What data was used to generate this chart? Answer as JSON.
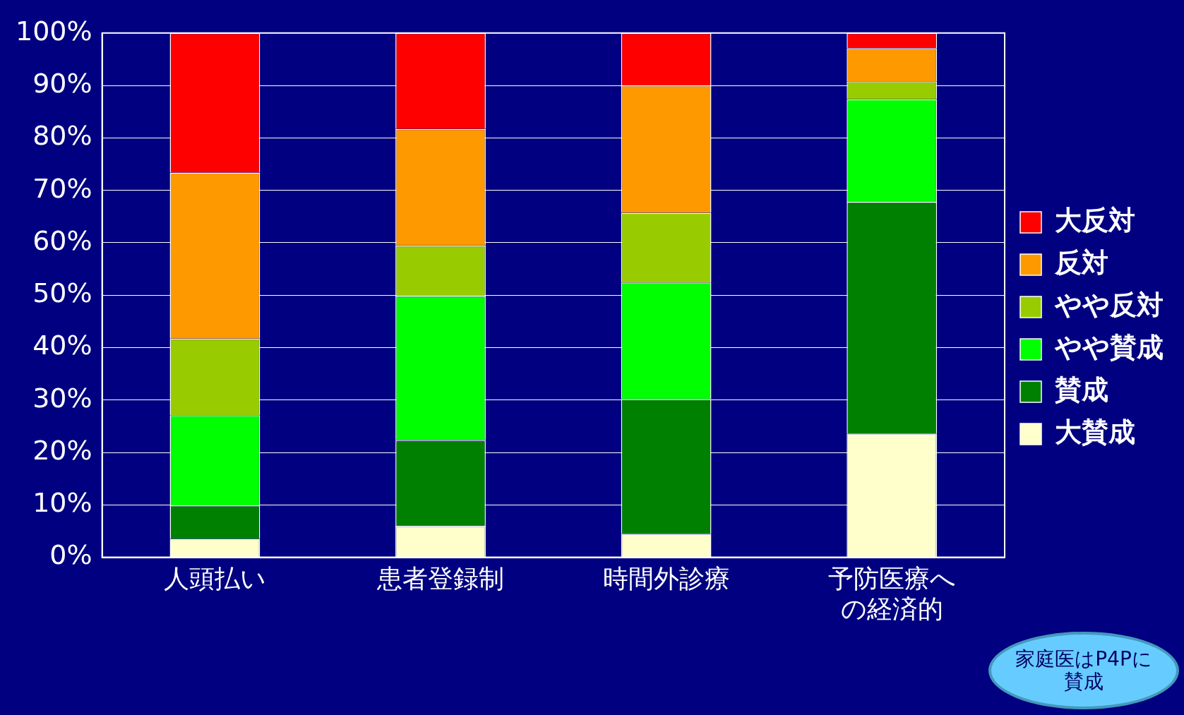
{
  "chart_data": {
    "type": "bar",
    "stacked": true,
    "categories": [
      "人頭払い",
      "患者登録制",
      "時間外診療",
      "予防医療への経済的"
    ],
    "series": [
      {
        "name": "大賛成",
        "color": "#ffffcc",
        "values": [
          3.5,
          6.0,
          4.5,
          23.6
        ]
      },
      {
        "name": "賛成",
        "color": "#008000",
        "values": [
          6.4,
          16.4,
          25.7,
          44.2
        ]
      },
      {
        "name": "やや賛成",
        "color": "#00ff00",
        "values": [
          17.2,
          27.5,
          22.2,
          19.6
        ]
      },
      {
        "name": "やや反対",
        "color": "#99cc00",
        "values": [
          14.6,
          9.6,
          13.3,
          3.4
        ]
      },
      {
        "name": "反対",
        "color": "#ff9900",
        "values": [
          31.7,
          22.2,
          24.3,
          6.3
        ]
      },
      {
        "name": "大反対",
        "color": "#ff0000",
        "values": [
          26.6,
          18.3,
          10.0,
          2.9
        ]
      }
    ],
    "ylim": [
      0,
      100
    ],
    "yticks": [
      {
        "value": 0,
        "label": "0%"
      },
      {
        "value": 10,
        "label": "10%"
      },
      {
        "value": 20,
        "label": "20%"
      },
      {
        "value": 30,
        "label": "30%"
      },
      {
        "value": 40,
        "label": "40%"
      },
      {
        "value": 50,
        "label": "50%"
      },
      {
        "value": 60,
        "label": "60%"
      },
      {
        "value": 70,
        "label": "70%"
      },
      {
        "value": 80,
        "label": "80%"
      },
      {
        "value": 90,
        "label": "90%"
      },
      {
        "value": 100,
        "label": "100%"
      }
    ],
    "grid": "y",
    "legend": "right",
    "annotations": [
      "家庭医はP4Pに賛成"
    ]
  }
}
